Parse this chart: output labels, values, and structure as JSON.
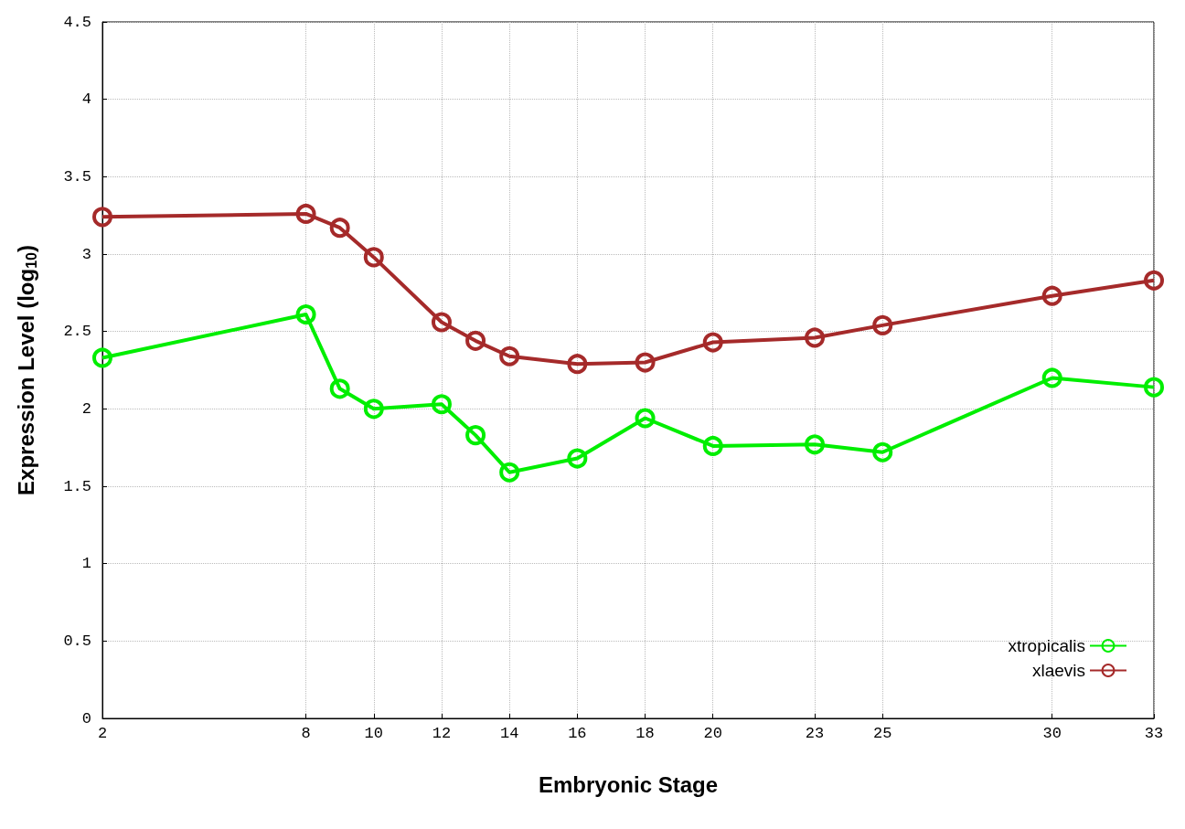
{
  "chart_data": {
    "type": "line",
    "xlabel": "Embryonic Stage",
    "ylabel": "Expression Level (log$_{10}$)",
    "xlim": [
      2,
      33
    ],
    "xticks": [
      2,
      8,
      10,
      12,
      14,
      16,
      18,
      20,
      23,
      25,
      30,
      33
    ],
    "ylim": [
      0,
      4.5
    ],
    "yticks": [
      0,
      0.5,
      1,
      1.5,
      2,
      2.5,
      3,
      3.5,
      4,
      4.5
    ],
    "grid": true,
    "legend": "bottom right",
    "marker": "circle",
    "line_style": "solid",
    "series": [
      {
        "name": "xtropicalis",
        "color": "#00ee00",
        "x": [
          2,
          8,
          9,
          10,
          12,
          13,
          14,
          16,
          18,
          20,
          23,
          25,
          30,
          33
        ],
        "values": [
          2.33,
          2.61,
          2.13,
          2.0,
          2.03,
          1.83,
          1.59,
          1.68,
          1.94,
          1.76,
          1.77,
          1.72,
          2.2,
          2.14
        ]
      },
      {
        "name": "xlaevis",
        "color": "#a52a2a",
        "x": [
          2,
          8,
          9,
          10,
          12,
          13,
          14,
          16,
          18,
          20,
          23,
          25,
          30,
          33
        ],
        "values": [
          3.24,
          3.26,
          3.17,
          2.98,
          2.56,
          2.44,
          2.34,
          2.29,
          2.3,
          2.43,
          2.46,
          2.54,
          2.73,
          2.83
        ]
      }
    ]
  }
}
